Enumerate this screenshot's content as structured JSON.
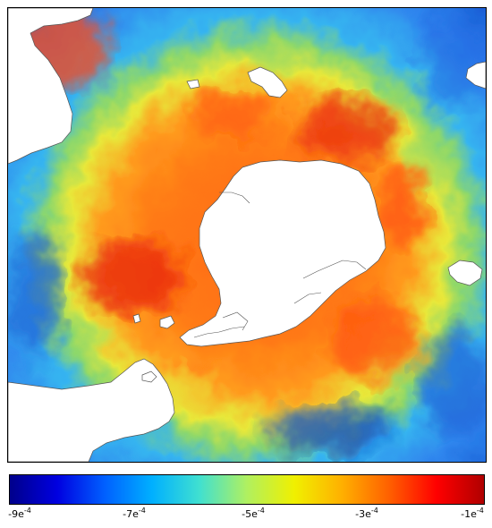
{
  "colorbar": {
    "colors": [
      "#00008b",
      "#0000e0",
      "#0060ff",
      "#00b0ff",
      "#40e0d0",
      "#b0f060",
      "#f0f000",
      "#ffb000",
      "#ff6000",
      "#ff0000",
      "#b00000"
    ],
    "ticks": [
      {
        "mantissa": "-9",
        "exponent": "-4"
      },
      {
        "mantissa": "-7",
        "exponent": "-4"
      },
      {
        "mantissa": "-5",
        "exponent": "-4"
      },
      {
        "mantissa": "-3",
        "exponent": "-4"
      },
      {
        "mantissa": "-1",
        "exponent": "-4"
      }
    ]
  },
  "map": {
    "ocean_palette": {
      "deep_blue": "#1a5fd6",
      "blue": "#2f86ee",
      "cyan": "#36b4f0",
      "green": "#8ed86a",
      "yellow": "#e8e83a",
      "orange": "#ff9a1e",
      "red_orange": "#ff6a10",
      "red": "#e8200c"
    },
    "land_color": "#ffffff",
    "coastline_color": "#555555"
  }
}
